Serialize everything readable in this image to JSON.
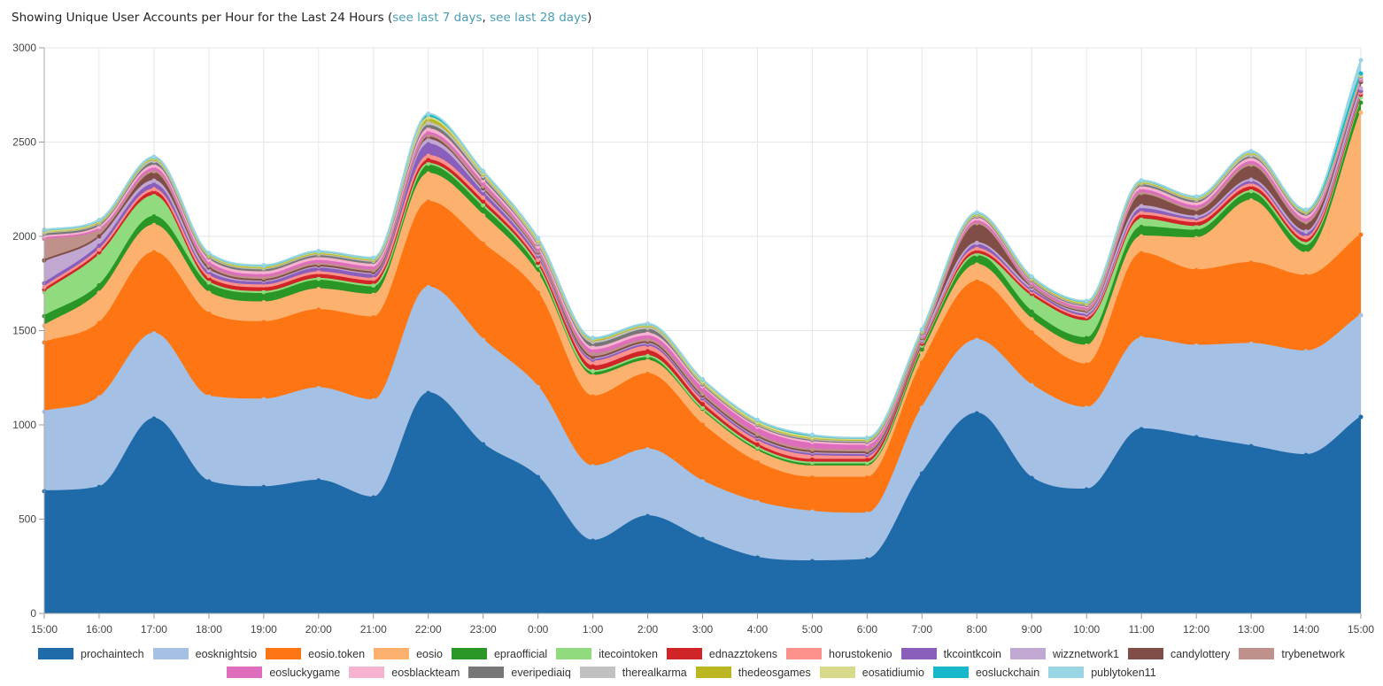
{
  "header": {
    "text": "Showing Unique User Accounts per Hour for the Last 24 Hours (",
    "link_7": "see last 7 days",
    "sep": ", ",
    "link_28": "see last 28 days",
    "close": ")"
  },
  "chart_data": {
    "type": "area",
    "stacked": true,
    "title": "Showing Unique User Accounts per Hour for the Last 24 Hours",
    "xlabel": "",
    "ylabel": "",
    "ylim": [
      0,
      3000
    ],
    "yticks": [
      "0",
      "500",
      "1000",
      "1500",
      "2000",
      "2500",
      "3000"
    ],
    "ytick_values": [
      0,
      500,
      1000,
      1500,
      2000,
      2500,
      3000
    ],
    "grid": true,
    "legend_position": "bottom",
    "x": [
      "15:00",
      "16:00",
      "17:00",
      "18:00",
      "19:00",
      "20:00",
      "21:00",
      "22:00",
      "23:00",
      "0:00",
      "1:00",
      "2:00",
      "3:00",
      "4:00",
      "5:00",
      "6:00",
      "7:00",
      "8:00",
      "9:00",
      "10:00",
      "11:00",
      "12:00",
      "13:00",
      "14:00",
      "15:00"
    ],
    "series": [
      {
        "name": "prochaintech",
        "color": "#1f6aa8",
        "values": [
          648,
          670,
          1033,
          700,
          670,
          705,
          615,
          1169,
          897,
          723,
          385,
          516,
          394,
          296,
          277,
          286,
          742,
          1061,
          718,
          657,
          977,
          934,
          887,
          840,
          1042
        ]
      },
      {
        "name": "eosknightsio",
        "color": "#a4c0e4",
        "values": [
          422,
          475,
          452,
          450,
          465,
          490,
          515,
          561,
          553,
          477,
          395,
          354,
          306,
          294,
          263,
          244,
          348,
          389,
          492,
          433,
          483,
          486,
          543,
          550,
          540
        ]
      },
      {
        "name": "eosio.token",
        "color": "#fd7613",
        "values": [
          367,
          395,
          430,
          440,
          410,
          415,
          440,
          453,
          510,
          500,
          370,
          400,
          300,
          210,
          180,
          190,
          240,
          310,
          280,
          230,
          450,
          400,
          430,
          400,
          427
        ]
      },
      {
        "name": "eosio",
        "color": "#fcb16f",
        "values": [
          89,
          160,
          145,
          110,
          105,
          110,
          120,
          150,
          150,
          100,
          110,
          70,
          70,
          60,
          60,
          60,
          50,
          90,
          70,
          100,
          90,
          170,
          330,
          120,
          648
        ]
      },
      {
        "name": "epraofficial",
        "color": "#2a9626",
        "values": [
          51,
          40,
          45,
          45,
          45,
          45,
          40,
          47,
          50,
          40,
          20,
          20,
          15,
          15,
          15,
          15,
          20,
          50,
          40,
          40,
          50,
          40,
          40,
          40,
          52
        ]
      },
      {
        "name": "itecointoken",
        "color": "#90db7d",
        "values": [
          127,
          160,
          110,
          10,
          10,
          10,
          10,
          5,
          5,
          5,
          5,
          5,
          5,
          5,
          5,
          5,
          20,
          5,
          80,
          90,
          40,
          20,
          10,
          15,
          28
        ]
      },
      {
        "name": "ednazztokens",
        "color": "#d02426",
        "values": [
          14,
          15,
          20,
          20,
          20,
          20,
          20,
          19,
          20,
          15,
          25,
          25,
          20,
          15,
          15,
          15,
          10,
          15,
          15,
          15,
          20,
          20,
          20,
          15,
          14
        ]
      },
      {
        "name": "horustokenio",
        "color": "#fd918c",
        "values": [
          14,
          15,
          15,
          15,
          15,
          15,
          15,
          23,
          20,
          15,
          30,
          30,
          25,
          25,
          25,
          20,
          10,
          15,
          10,
          10,
          15,
          15,
          15,
          15,
          10
        ]
      },
      {
        "name": "tkcointkcoin",
        "color": "#8a5ebb",
        "values": [
          19,
          20,
          25,
          20,
          15,
          20,
          20,
          61,
          25,
          20,
          5,
          5,
          5,
          5,
          5,
          5,
          5,
          20,
          10,
          10,
          20,
          10,
          15,
          20,
          10
        ]
      },
      {
        "name": "wizznetwork1",
        "color": "#c1a8d2",
        "values": [
          118,
          40,
          20,
          10,
          10,
          10,
          10,
          24,
          15,
          10,
          10,
          10,
          10,
          10,
          10,
          10,
          5,
          10,
          10,
          10,
          15,
          10,
          10,
          10,
          14
        ]
      },
      {
        "name": "candylottery",
        "color": "#804e46",
        "values": [
          4,
          10,
          40,
          15,
          5,
          5,
          5,
          18,
          10,
          10,
          5,
          5,
          5,
          5,
          5,
          5,
          10,
          100,
          10,
          10,
          60,
          30,
          70,
          40,
          33
        ]
      },
      {
        "name": "trybenetwork",
        "color": "#c0918a",
        "values": [
          113,
          30,
          10,
          10,
          10,
          10,
          10,
          5,
          10,
          5,
          15,
          10,
          10,
          10,
          10,
          10,
          5,
          5,
          5,
          5,
          10,
          10,
          10,
          10,
          10
        ]
      },
      {
        "name": "eosluckygame",
        "color": "#de6ebd",
        "values": [
          5,
          10,
          15,
          15,
          15,
          15,
          15,
          14,
          15,
          15,
          20,
          20,
          30,
          30,
          30,
          25,
          10,
          10,
          10,
          10,
          15,
          15,
          15,
          15,
          3
        ]
      },
      {
        "name": "eosblackteam",
        "color": "#f6b3d0",
        "values": [
          9,
          10,
          15,
          15,
          15,
          15,
          15,
          19,
          15,
          10,
          15,
          15,
          10,
          10,
          10,
          10,
          5,
          15,
          10,
          10,
          15,
          15,
          15,
          15,
          10
        ]
      },
      {
        "name": "everipediaiq",
        "color": "#777777",
        "values": [
          14,
          15,
          15,
          15,
          15,
          15,
          15,
          19,
          15,
          15,
          20,
          20,
          10,
          10,
          10,
          10,
          5,
          10,
          5,
          5,
          15,
          15,
          15,
          15,
          6
        ]
      },
      {
        "name": "therealkarma",
        "color": "#c1c1c1",
        "values": [
          5,
          5,
          10,
          5,
          5,
          5,
          5,
          14,
          10,
          5,
          10,
          10,
          5,
          5,
          5,
          5,
          5,
          5,
          5,
          5,
          5,
          5,
          5,
          5,
          3
        ]
      },
      {
        "name": "thedeosgames",
        "color": "#bab723",
        "values": [
          4,
          5,
          10,
          5,
          5,
          5,
          5,
          23,
          10,
          10,
          10,
          10,
          5,
          5,
          5,
          5,
          5,
          5,
          5,
          5,
          5,
          5,
          10,
          5,
          3
        ]
      },
      {
        "name": "eosatidiumio",
        "color": "#d8d98a",
        "values": [
          2,
          5,
          5,
          5,
          5,
          5,
          5,
          5,
          5,
          5,
          5,
          5,
          5,
          5,
          5,
          5,
          5,
          5,
          5,
          5,
          5,
          5,
          5,
          5,
          3
        ]
      },
      {
        "name": "eosluckchain",
        "color": "#18b8cb",
        "values": [
          8,
          5,
          5,
          5,
          5,
          5,
          5,
          19,
          10,
          10,
          5,
          5,
          10,
          10,
          10,
          5,
          5,
          5,
          5,
          5,
          5,
          5,
          5,
          5,
          8
        ]
      },
      {
        "name": "publytoken11",
        "color": "#9ad5e3",
        "values": [
          2,
          2,
          2,
          2,
          2,
          2,
          2,
          2,
          2,
          2,
          2,
          2,
          2,
          2,
          2,
          2,
          2,
          2,
          2,
          2,
          2,
          2,
          2,
          2,
          70
        ]
      }
    ]
  }
}
